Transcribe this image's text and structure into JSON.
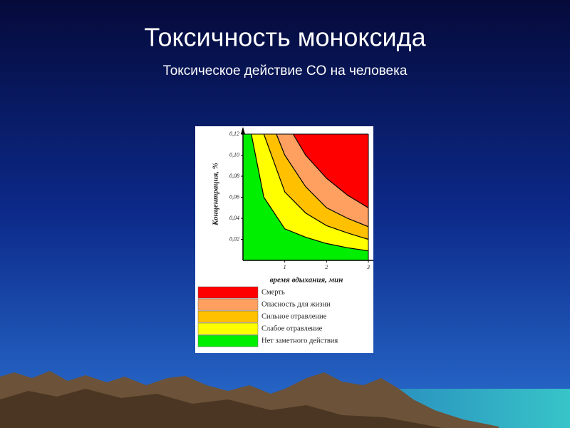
{
  "chart_data": {
    "type": "zones",
    "title": "Токсичность моноксида",
    "subtitle": "Токсическое действие CO на человека",
    "x_label": "время вдыхания, мин",
    "y_label": "Концентрация, %",
    "xlim": [
      0,
      3
    ],
    "ylim": [
      0,
      0.12
    ],
    "xticks": [
      1,
      2,
      3
    ],
    "yticks": [
      {
        "value": 0.02,
        "label": "0,02"
      },
      {
        "value": 0.04,
        "label": "0,04"
      },
      {
        "value": 0.06,
        "label": "0,06"
      },
      {
        "value": 0.08,
        "label": "0,08"
      },
      {
        "value": 0.1,
        "label": "0,10"
      },
      {
        "value": 0.12,
        "label": "0,12"
      }
    ],
    "series": [
      {
        "name": "Смерть",
        "color": "#ff0000"
      },
      {
        "name": "Опасность для жизни",
        "color": "#ffa060",
        "x": [
          1.2,
          1.5,
          2,
          2.5,
          3
        ],
        "values": [
          0.12,
          0.1,
          0.078,
          0.062,
          0.05
        ]
      },
      {
        "name": "Сильное отравление",
        "color": "#ffc000",
        "x": [
          0.8,
          1,
          1.5,
          2,
          2.5,
          3
        ],
        "values": [
          0.12,
          0.1,
          0.07,
          0.05,
          0.04,
          0.032
        ]
      },
      {
        "name": "Слабое отравление",
        "color": "#ffff00",
        "x": [
          0.5,
          1,
          1.5,
          2,
          2.5,
          3
        ],
        "values": [
          0.12,
          0.065,
          0.045,
          0.033,
          0.026,
          0.02
        ]
      },
      {
        "name": "Нет заметного действия",
        "color": "#00ee00",
        "x": [
          0.2,
          0.5,
          1,
          1.5,
          2,
          2.5,
          3
        ],
        "values": [
          0.12,
          0.06,
          0.03,
          0.022,
          0.016,
          0.012,
          0.009
        ]
      }
    ]
  }
}
